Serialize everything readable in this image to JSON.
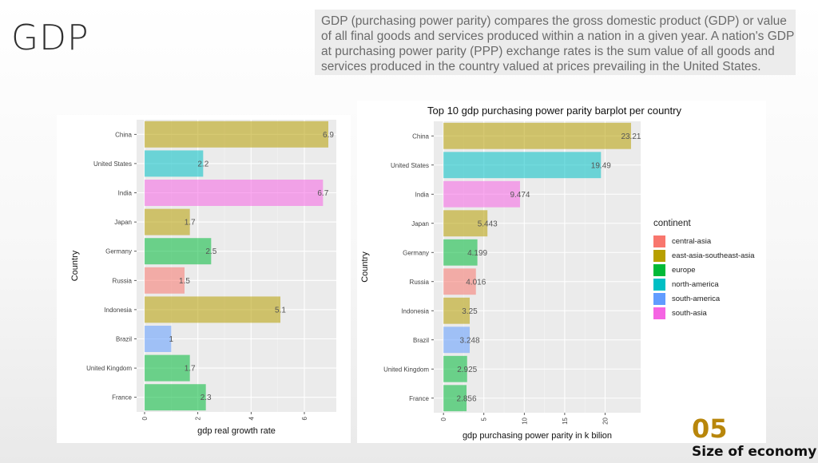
{
  "slide": {
    "title": "GDP",
    "description": "GDP (purchasing power parity) compares the gross domestic product (GDP) or value of all final goods and services produced within a nation in a given year. A nation's GDP at purchasing power parity (PPP) exchange rates is the sum value of all goods and services produced in the country valued at prices prevailing in the United States.",
    "section_number": "05",
    "section_title": "Size of economy"
  },
  "colors": {
    "central-asia": "#f8766d",
    "east-asia-southeast-asia": "#b79f00",
    "europe": "#00ba38",
    "north-america": "#00bfc4",
    "south-america": "#619cff",
    "south-asia": "#f564e3"
  },
  "legend": {
    "title": "continent",
    "items": [
      "central-asia",
      "east-asia-southeast-asia",
      "europe",
      "north-america",
      "south-america",
      "south-asia"
    ]
  },
  "chart_data": [
    {
      "type": "bar",
      "orientation": "horizontal",
      "title": "",
      "xlabel": "gdp real growth rate",
      "ylabel": "Country",
      "categories": [
        "China",
        "United States",
        "India",
        "Japan",
        "Germany",
        "Russia",
        "Indonesia",
        "Brazil",
        "United Kingdom",
        "France"
      ],
      "values": [
        6.9,
        2.2,
        6.7,
        1.7,
        2.5,
        1.5,
        5.1,
        1,
        1.7,
        2.3
      ],
      "labels": [
        "6.9",
        "2.2",
        "6.7",
        "1.7",
        "2.5",
        "1.5",
        "5.1",
        "1",
        "1.7",
        "2.3"
      ],
      "continents": [
        "east-asia-southeast-asia",
        "north-america",
        "south-asia",
        "east-asia-southeast-asia",
        "europe",
        "central-asia",
        "east-asia-southeast-asia",
        "south-america",
        "europe",
        "europe"
      ],
      "xticks": [
        "0",
        "2",
        "4",
        "6"
      ],
      "xlim": [
        -0.3,
        7.2
      ],
      "grid": true
    },
    {
      "type": "bar",
      "orientation": "horizontal",
      "title": "Top 10 gdp purchasing power parity barplot per country",
      "xlabel": "gdp purchasing power parity in k bilion",
      "ylabel": "Country",
      "categories": [
        "China",
        "United States",
        "India",
        "Japan",
        "Germany",
        "Russia",
        "Indonesia",
        "Brazil",
        "United Kingdom",
        "France"
      ],
      "values": [
        23.21,
        19.49,
        9.474,
        5.443,
        4.199,
        4.016,
        3.25,
        3.248,
        2.925,
        2.856
      ],
      "labels": [
        "23.21",
        "19.49",
        "9.474",
        "5.443",
        "4.199",
        "4.016",
        "3.25",
        "3.248",
        "2.925",
        "2.856"
      ],
      "continents": [
        "east-asia-southeast-asia",
        "north-america",
        "south-asia",
        "east-asia-southeast-asia",
        "europe",
        "central-asia",
        "east-asia-southeast-asia",
        "south-america",
        "europe",
        "europe"
      ],
      "xticks": [
        "0",
        "5",
        "10",
        "15",
        "20"
      ],
      "xlim": [
        -1.2,
        24.4
      ],
      "grid": true
    }
  ]
}
